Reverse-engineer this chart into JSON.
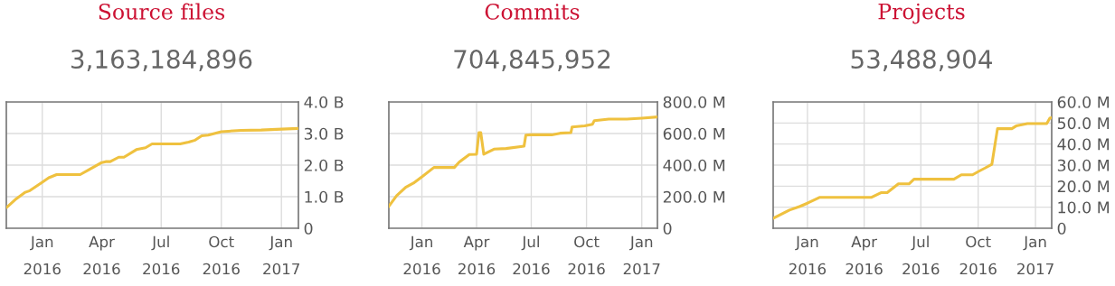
{
  "chart_data": [
    {
      "type": "line",
      "title": "Source files",
      "subtitle": "3,163,184,896",
      "grid": true,
      "marker": "none",
      "line_style": "solid",
      "x": [
        "2015-11-08",
        "2015-11-22",
        "2015-12-06",
        "2015-12-13",
        "2016-01-01",
        "2016-01-11",
        "2016-01-23",
        "2016-02-28",
        "2016-03-13",
        "2016-04-01",
        "2016-04-07",
        "2016-04-14",
        "2016-04-27",
        "2016-05-05",
        "2016-05-24",
        "2016-06-07",
        "2016-06-17",
        "2016-07-01",
        "2016-07-30",
        "2016-08-12",
        "2016-08-22",
        "2016-09-01",
        "2016-09-11",
        "2016-10-01",
        "2016-10-31",
        "2016-12-01",
        "2017-01-01",
        "2017-01-27"
      ],
      "series": [
        {
          "color": "#efc13f",
          "values": [
            0.67,
            0.93,
            1.14,
            1.19,
            1.46,
            1.6,
            1.7,
            1.7,
            1.86,
            2.08,
            2.11,
            2.11,
            2.25,
            2.25,
            2.49,
            2.55,
            2.67,
            2.67,
            2.67,
            2.73,
            2.79,
            2.93,
            2.95,
            3.06,
            3.1,
            3.11,
            3.14,
            3.16
          ]
        }
      ],
      "xlim": [
        "2015-11-07",
        "2017-01-27"
      ],
      "xticks": [
        {
          "value": "2016-01-01",
          "label": "Jan\n2016"
        },
        {
          "value": "2016-04-01",
          "label": "Apr\n2016"
        },
        {
          "value": "2016-07-01",
          "label": "Jul\n2016"
        },
        {
          "value": "2016-10-01",
          "label": "Oct\n2016"
        },
        {
          "value": "2017-01-01",
          "label": "Jan\n2017"
        }
      ],
      "ylim": [
        0,
        4
      ],
      "yticks": [
        0,
        {
          "value": 1,
          "label": "1.0 B"
        },
        {
          "value": 2,
          "label": "2.0 B"
        },
        {
          "value": 3,
          "label": "3.0 B"
        },
        {
          "value": 4,
          "label": "4.0 B"
        }
      ]
    },
    {
      "type": "line",
      "title": "Commits",
      "subtitle": "704,845,952",
      "grid": true,
      "marker": "none",
      "line_style": "solid",
      "x": [
        "2015-11-07",
        "2015-11-20",
        "2015-12-05",
        "2015-12-18",
        "2016-01-01",
        "2016-01-21",
        "2016-02-24",
        "2016-03-03",
        "2016-03-20",
        "2016-04-01",
        "2016-04-05",
        "2016-04-08",
        "2016-04-13",
        "2016-04-30",
        "2016-05-20",
        "2016-06-19",
        "2016-06-22",
        "2016-07-01",
        "2016-08-04",
        "2016-08-18",
        "2016-09-05",
        "2016-09-07",
        "2016-09-28",
        "2016-10-11",
        "2016-10-14",
        "2016-11-07",
        "2016-12-07",
        "2017-01-01",
        "2017-01-27"
      ],
      "series": [
        {
          "color": "#efc13f",
          "values": [
            139,
            206,
            259,
            286,
            326,
            385,
            385,
            419,
            467,
            469,
            606,
            606,
            469,
            501,
            505,
            520,
            590,
            592,
            592,
            602,
            606,
            642,
            648,
            659,
            682,
            691,
            691,
            697,
            705
          ]
        }
      ],
      "xlim": [
        "2015-11-07",
        "2017-01-27"
      ],
      "xticks": [
        {
          "value": "2016-01-01",
          "label": "Jan\n2016"
        },
        {
          "value": "2016-04-01",
          "label": "Apr\n2016"
        },
        {
          "value": "2016-07-01",
          "label": "Jul\n2016"
        },
        {
          "value": "2016-10-01",
          "label": "Oct\n2016"
        },
        {
          "value": "2017-01-01",
          "label": "Jan\n2017"
        }
      ],
      "ylim": [
        0,
        800
      ],
      "yticks": [
        0,
        {
          "value": 200,
          "label": "200.0 M"
        },
        {
          "value": 400,
          "label": "400.0 M"
        },
        {
          "value": 600,
          "label": "600.0 M"
        },
        {
          "value": 800,
          "label": "800.0 M"
        }
      ]
    },
    {
      "type": "line",
      "title": "Projects",
      "subtitle": "53,488,904",
      "grid": true,
      "marker": "none",
      "line_style": "solid",
      "x": [
        "2015-11-07",
        "2015-12-03",
        "2015-12-20",
        "2016-01-01",
        "2016-01-21",
        "2016-04-13",
        "2016-04-28",
        "2016-05-08",
        "2016-05-26",
        "2016-06-12",
        "2016-06-20",
        "2016-07-01",
        "2016-08-23",
        "2016-09-04",
        "2016-09-22",
        "2016-10-01",
        "2016-10-12",
        "2016-10-23",
        "2016-11-01",
        "2016-11-24",
        "2016-12-01",
        "2016-12-19",
        "2017-01-19",
        "2017-01-24",
        "2017-01-27"
      ],
      "series": [
        {
          "color": "#efc13f",
          "values": [
            4.7,
            8.6,
            10.4,
            11.9,
            14.7,
            14.7,
            16.9,
            16.9,
            21.1,
            21.1,
            23.3,
            23.3,
            23.3,
            25.4,
            25.4,
            26.9,
            28.6,
            30.4,
            47.3,
            47.3,
            48.6,
            49.7,
            49.7,
            52.3,
            52.6
          ]
        }
      ],
      "xlim": [
        "2015-11-07",
        "2017-01-27"
      ],
      "xticks": [
        {
          "value": "2016-01-01",
          "label": "Jan\n2016"
        },
        {
          "value": "2016-04-01",
          "label": "Apr\n2016"
        },
        {
          "value": "2016-07-01",
          "label": "Jul\n2016"
        },
        {
          "value": "2016-10-01",
          "label": "Oct\n2016"
        },
        {
          "value": "2017-01-01",
          "label": "Jan\n2017"
        }
      ],
      "ylim": [
        0,
        60
      ],
      "yticks": [
        0,
        {
          "value": 10,
          "label": "10.0 M"
        },
        {
          "value": 20,
          "label": "20.0 M"
        },
        {
          "value": 30,
          "label": "30.0 M"
        },
        {
          "value": 40,
          "label": "40.0 M"
        },
        {
          "value": 50,
          "label": "50.0 M"
        },
        {
          "value": 60,
          "label": "60.0 M"
        }
      ]
    }
  ]
}
